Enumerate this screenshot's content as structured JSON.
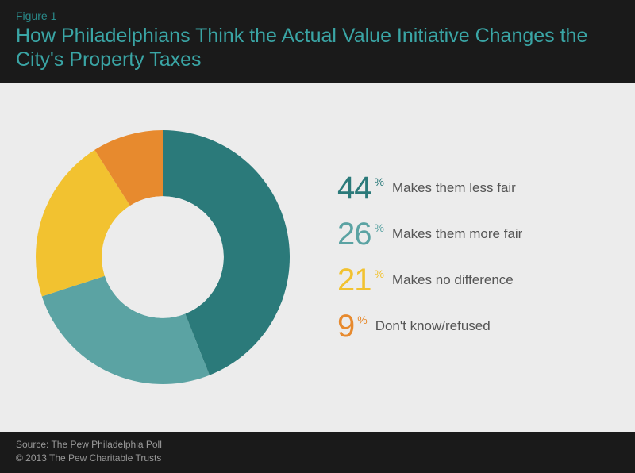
{
  "header": {
    "figure_label": "Figure 1",
    "title": "How Philadelphians Think the Actual Value Initiative Changes the City's Property Taxes"
  },
  "chart": {
    "type": "donut",
    "inner_radius_ratio": 0.48,
    "background_color": "#ececec",
    "slices": [
      {
        "value": 44,
        "label": "Makes them less fair",
        "color": "#2b7a7a"
      },
      {
        "value": 26,
        "label": "Makes them more fair",
        "color": "#5ba3a3"
      },
      {
        "value": 21,
        "label": "Makes no difference",
        "color": "#f2c230"
      },
      {
        "value": 9,
        "label": "Don't know/refused",
        "color": "#e78a2e"
      }
    ],
    "start_angle_deg": -90,
    "value_fontsize": 40,
    "label_fontsize": 17,
    "label_color": "#555555"
  },
  "footer": {
    "source": "Source: The Pew Philadelphia Poll",
    "copyright": "© 2013 The Pew Charitable Trusts"
  }
}
